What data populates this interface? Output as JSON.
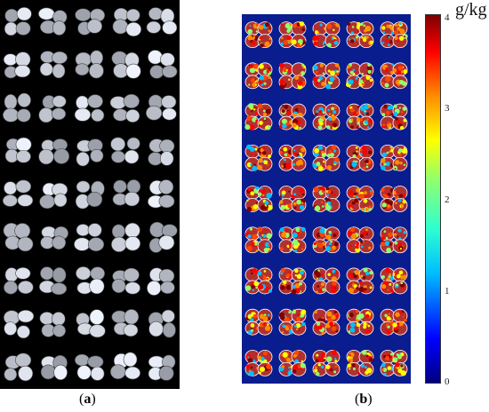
{
  "figure": {
    "caption_a": {
      "open": "(",
      "letter": "a",
      "close": ")"
    },
    "caption_b": {
      "open": "(",
      "letter": "b",
      "close": ")"
    }
  },
  "colorbar": {
    "unit": "g/kg",
    "ticks": [
      "0",
      "1",
      "2",
      "3",
      "4"
    ],
    "colormap": "jet"
  },
  "grid": {
    "rows": 9,
    "cols": 5
  },
  "colors": {
    "background_a": "#000000",
    "background_b": "#0a1d8e"
  }
}
